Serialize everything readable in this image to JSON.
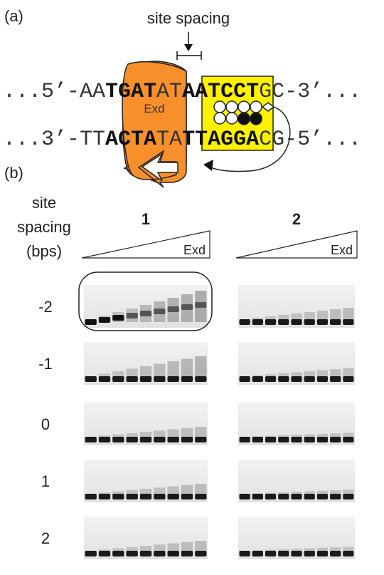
{
  "panel_a": {
    "label": "(a)",
    "site_spacing_label": "site spacing",
    "top_strand": [
      "...5’-AA",
      "TGAT",
      "AT",
      "AATCCT",
      "GC-3’..."
    ],
    "bottom_strand": [
      "...3’-TT",
      "ACTA",
      "TA",
      "TTAGGA",
      "CG-5’..."
    ],
    "protein_label": "Exd"
  },
  "panel_b": {
    "label": "(b)",
    "row_header": [
      "site",
      "spacing",
      "(bps)"
    ],
    "columns": [
      {
        "label": "1",
        "titration": "Exd"
      },
      {
        "label": "2",
        "titration": "Exd"
      }
    ],
    "rows": [
      "-2",
      "-1",
      "0",
      "1",
      "2"
    ]
  }
}
